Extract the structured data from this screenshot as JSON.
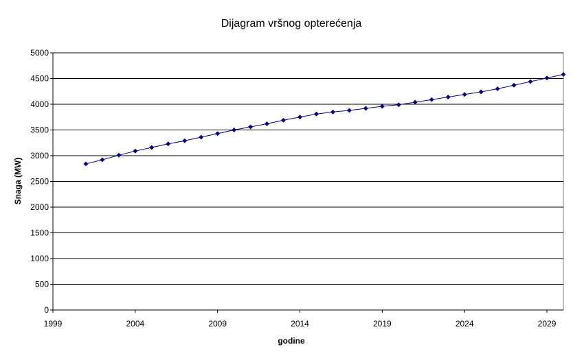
{
  "chart_data": {
    "type": "line",
    "title": "Dijagram vršnog opterećenja",
    "xlabel": "godine",
    "ylabel": "Snaga (MW)",
    "xlim": [
      1999,
      2030
    ],
    "ylim": [
      0,
      5000
    ],
    "x_ticks": [
      "1999",
      "2004",
      "2009",
      "2014",
      "2019",
      "2024",
      "2029"
    ],
    "y_ticks": [
      "0",
      "500",
      "1000",
      "1500",
      "2000",
      "2500",
      "3000",
      "3500",
      "4000",
      "4500",
      "5000"
    ],
    "grid": true,
    "legend": "none",
    "series": [
      {
        "color": "#000080",
        "x": [
          2001,
          2002,
          2003,
          2004,
          2005,
          2006,
          2007,
          2008,
          2009,
          2010,
          2011,
          2012,
          2013,
          2014,
          2015,
          2016,
          2017,
          2018,
          2019,
          2020,
          2021,
          2022,
          2023,
          2024,
          2025,
          2026,
          2027,
          2028,
          2029,
          2030
        ],
        "values": [
          2840,
          2920,
          3010,
          3090,
          3160,
          3230,
          3290,
          3360,
          3430,
          3500,
          3560,
          3620,
          3690,
          3750,
          3810,
          3850,
          3880,
          3920,
          3960,
          3990,
          4040,
          4090,
          4140,
          4190,
          4240,
          4300,
          4370,
          4440,
          4510,
          4580
        ]
      }
    ]
  }
}
